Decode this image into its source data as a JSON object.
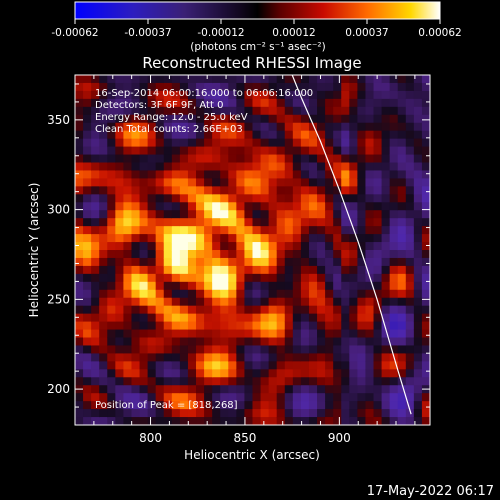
{
  "colorbar": {
    "ticks": [
      "-0.00062",
      "-0.00037",
      "-0.00012",
      "0.00012",
      "0.00037",
      "0.00062"
    ],
    "unit_label": "(photons cm⁻² s⁻¹ asec⁻²)"
  },
  "chart_data": {
    "type": "heatmap",
    "title": "Reconstructed RHESSI Image",
    "xlabel": "Heliocentric X (arcsec)",
    "ylabel": "Heliocentric Y (arcsec)",
    "xlim": [
      760,
      948
    ],
    "ylim": [
      180,
      375
    ],
    "xticks": [
      800,
      850,
      900
    ],
    "yticks": [
      200,
      250,
      300,
      350
    ],
    "annotations": [
      "16-Sep-2014 06:00:16.000 to 06:06:16.000",
      "Detectors: 3F 6F 9F, Att 0",
      "Energy Range: 12.0 - 25.0 keV",
      "Clean    Total counts: 2.66E+03"
    ],
    "peak_label": "Position of Peak = [818,268]",
    "peak": [
      818,
      268
    ],
    "limb_curve_x": [
      875,
      880,
      890,
      900,
      910,
      920,
      930,
      938
    ],
    "limb_curve_y": [
      375,
      362,
      338,
      311,
      282,
      250,
      214,
      186
    ],
    "colormap": "rhessi-symmetric-blue-to-white"
  },
  "footer": {
    "timestamp": "17-May-2022 06:17"
  }
}
